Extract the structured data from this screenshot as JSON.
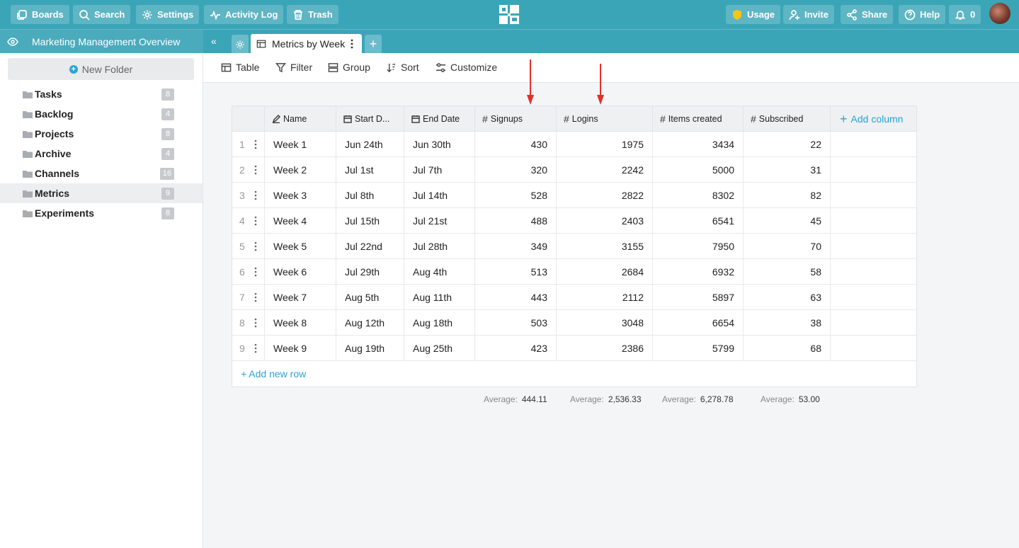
{
  "topbar": {
    "boards": "Boards",
    "search": "Search",
    "settings": "Settings",
    "activity_log": "Activity Log",
    "trash": "Trash",
    "usage": "Usage",
    "invite": "Invite",
    "share": "Share",
    "help": "Help",
    "notifications_count": "0"
  },
  "subbar": {
    "project_title": "Marketing Management Overview",
    "collapse": "«",
    "active_tab": "Metrics by Week",
    "add_tab": "+"
  },
  "sidebar": {
    "new_folder": "New Folder",
    "folders": [
      {
        "label": "Tasks",
        "count": "8"
      },
      {
        "label": "Backlog",
        "count": "4"
      },
      {
        "label": "Projects",
        "count": "8"
      },
      {
        "label": "Archive",
        "count": "4"
      },
      {
        "label": "Channels",
        "count": "16"
      },
      {
        "label": "Metrics",
        "count": "9"
      },
      {
        "label": "Experiments",
        "count": "8"
      }
    ]
  },
  "toolbar": {
    "table": "Table",
    "filter": "Filter",
    "group": "Group",
    "sort": "Sort",
    "customize": "Customize"
  },
  "table": {
    "columns": {
      "name": "Name",
      "start_date": "Start D...",
      "end_date": "End Date",
      "signups": "Signups",
      "logins": "Logins",
      "items_created": "Items created",
      "subscribed": "Subscribed"
    },
    "add_column": "Add column",
    "add_row": "+ Add new row",
    "rows": [
      {
        "num": "1",
        "name": "Week 1",
        "start": "Jun 24th",
        "end": "Jun 30th",
        "signups": "430",
        "logins": "1975",
        "items": "3434",
        "subscribed": "22"
      },
      {
        "num": "2",
        "name": "Week 2",
        "start": "Jul 1st",
        "end": "Jul 7th",
        "signups": "320",
        "logins": "2242",
        "items": "5000",
        "subscribed": "31"
      },
      {
        "num": "3",
        "name": "Week 3",
        "start": "Jul 8th",
        "end": "Jul 14th",
        "signups": "528",
        "logins": "2822",
        "items": "8302",
        "subscribed": "82"
      },
      {
        "num": "4",
        "name": "Week 4",
        "start": "Jul 15th",
        "end": "Jul 21st",
        "signups": "488",
        "logins": "2403",
        "items": "6541",
        "subscribed": "45"
      },
      {
        "num": "5",
        "name": "Week 5",
        "start": "Jul 22nd",
        "end": "Jul 28th",
        "signups": "349",
        "logins": "3155",
        "items": "7950",
        "subscribed": "70"
      },
      {
        "num": "6",
        "name": "Week 6",
        "start": "Jul 29th",
        "end": "Aug 4th",
        "signups": "513",
        "logins": "2684",
        "items": "6932",
        "subscribed": "58"
      },
      {
        "num": "7",
        "name": "Week 7",
        "start": "Aug 5th",
        "end": "Aug 11th",
        "signups": "443",
        "logins": "2112",
        "items": "5897",
        "subscribed": "63"
      },
      {
        "num": "8",
        "name": "Week 8",
        "start": "Aug 12th",
        "end": "Aug 18th",
        "signups": "503",
        "logins": "3048",
        "items": "6654",
        "subscribed": "38"
      },
      {
        "num": "9",
        "name": "Week 9",
        "start": "Aug 19th",
        "end": "Aug 25th",
        "signups": "423",
        "logins": "2386",
        "items": "5799",
        "subscribed": "68"
      }
    ]
  },
  "averages": {
    "label": "Average:",
    "signups": "444.11",
    "logins": "2,536.33",
    "items_created": "6,278.78",
    "subscribed": "53.00"
  },
  "colors": {
    "header": "#3ba5b8",
    "accent": "#2aa3d6",
    "arrow": "#e0302a",
    "usage_shield": "#f5c518"
  }
}
